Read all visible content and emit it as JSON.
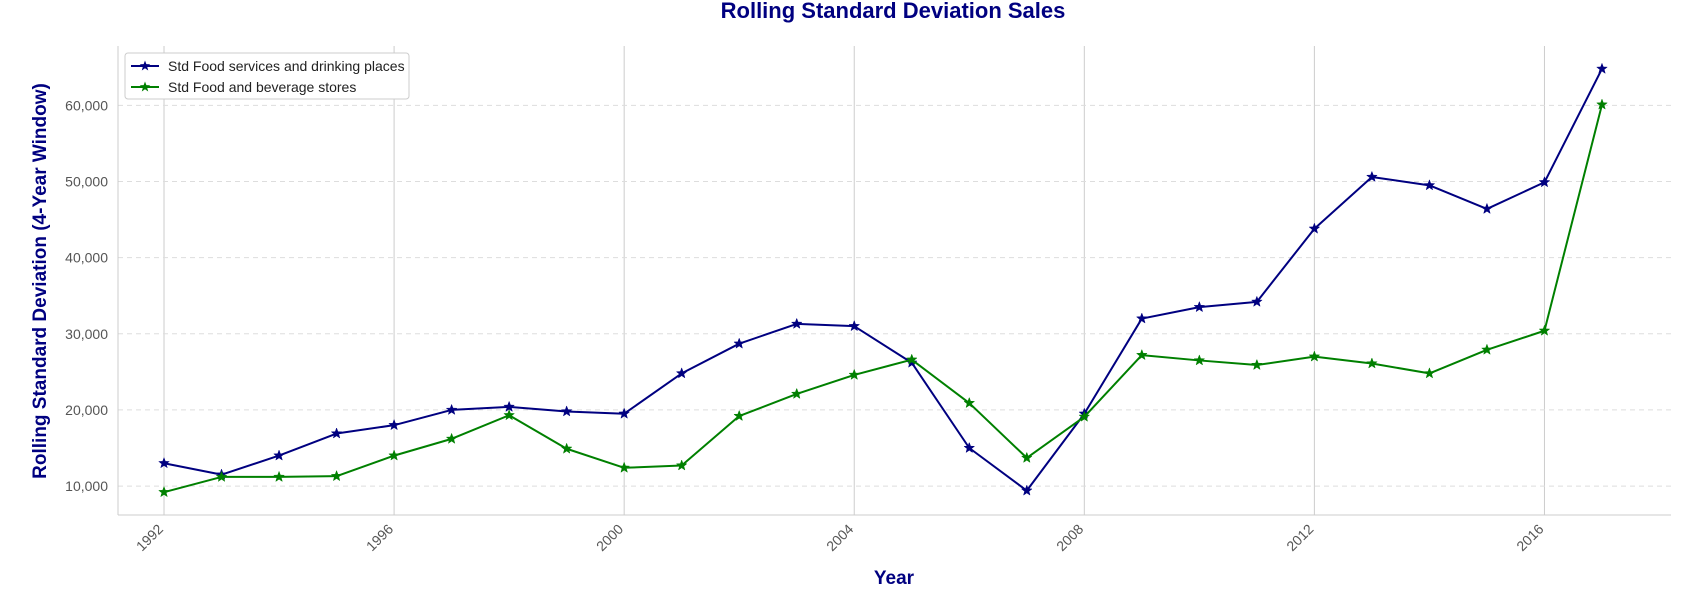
{
  "chart_data": {
    "type": "line",
    "title": "Rolling Standard Deviation Sales",
    "xlabel": "Year",
    "ylabel": "Rolling Standard Deviation (4-Year Window)",
    "x": [
      1992,
      1993,
      1994,
      1995,
      1996,
      1997,
      1998,
      1999,
      2000,
      2001,
      2002,
      2003,
      2004,
      2005,
      2006,
      2007,
      2008,
      2009,
      2010,
      2011,
      2012,
      2013,
      2014,
      2015,
      2016,
      2017
    ],
    "xlim": [
      1991.2,
      2018.2
    ],
    "ylim": [
      6200,
      67800
    ],
    "x_ticks": [
      1992,
      1996,
      2000,
      2004,
      2008,
      2012,
      2016
    ],
    "y_ticks": [
      10000,
      20000,
      30000,
      40000,
      50000,
      60000
    ],
    "x_tick_labels": [
      "1992",
      "1996",
      "2000",
      "2004",
      "2008",
      "2012",
      "2016"
    ],
    "y_tick_labels": [
      "10,000",
      "20,000",
      "30,000",
      "40,000",
      "50,000",
      "60,000"
    ],
    "grid": {
      "x": true,
      "y": true
    },
    "legend_position": "top-left",
    "series": [
      {
        "name": "Std Food services and drinking places",
        "color": "#000080",
        "marker": "star",
        "values": [
          13000,
          11500,
          14000,
          16900,
          18000,
          20000,
          20400,
          19800,
          19500,
          24800,
          28700,
          31300,
          31000,
          26200,
          15000,
          9400,
          19500,
          32000,
          33500,
          34200,
          43800,
          50600,
          49500,
          46400,
          49900,
          64800
        ]
      },
      {
        "name": "Std Food and beverage stores",
        "color": "#008000",
        "marker": "star",
        "values": [
          9200,
          11200,
          11200,
          11300,
          14000,
          16200,
          19300,
          14900,
          12400,
          12700,
          19200,
          22100,
          24600,
          26600,
          20900,
          13700,
          19100,
          27200,
          26500,
          25900,
          27000,
          26100,
          24800,
          27900,
          30400,
          60100
        ]
      }
    ]
  }
}
